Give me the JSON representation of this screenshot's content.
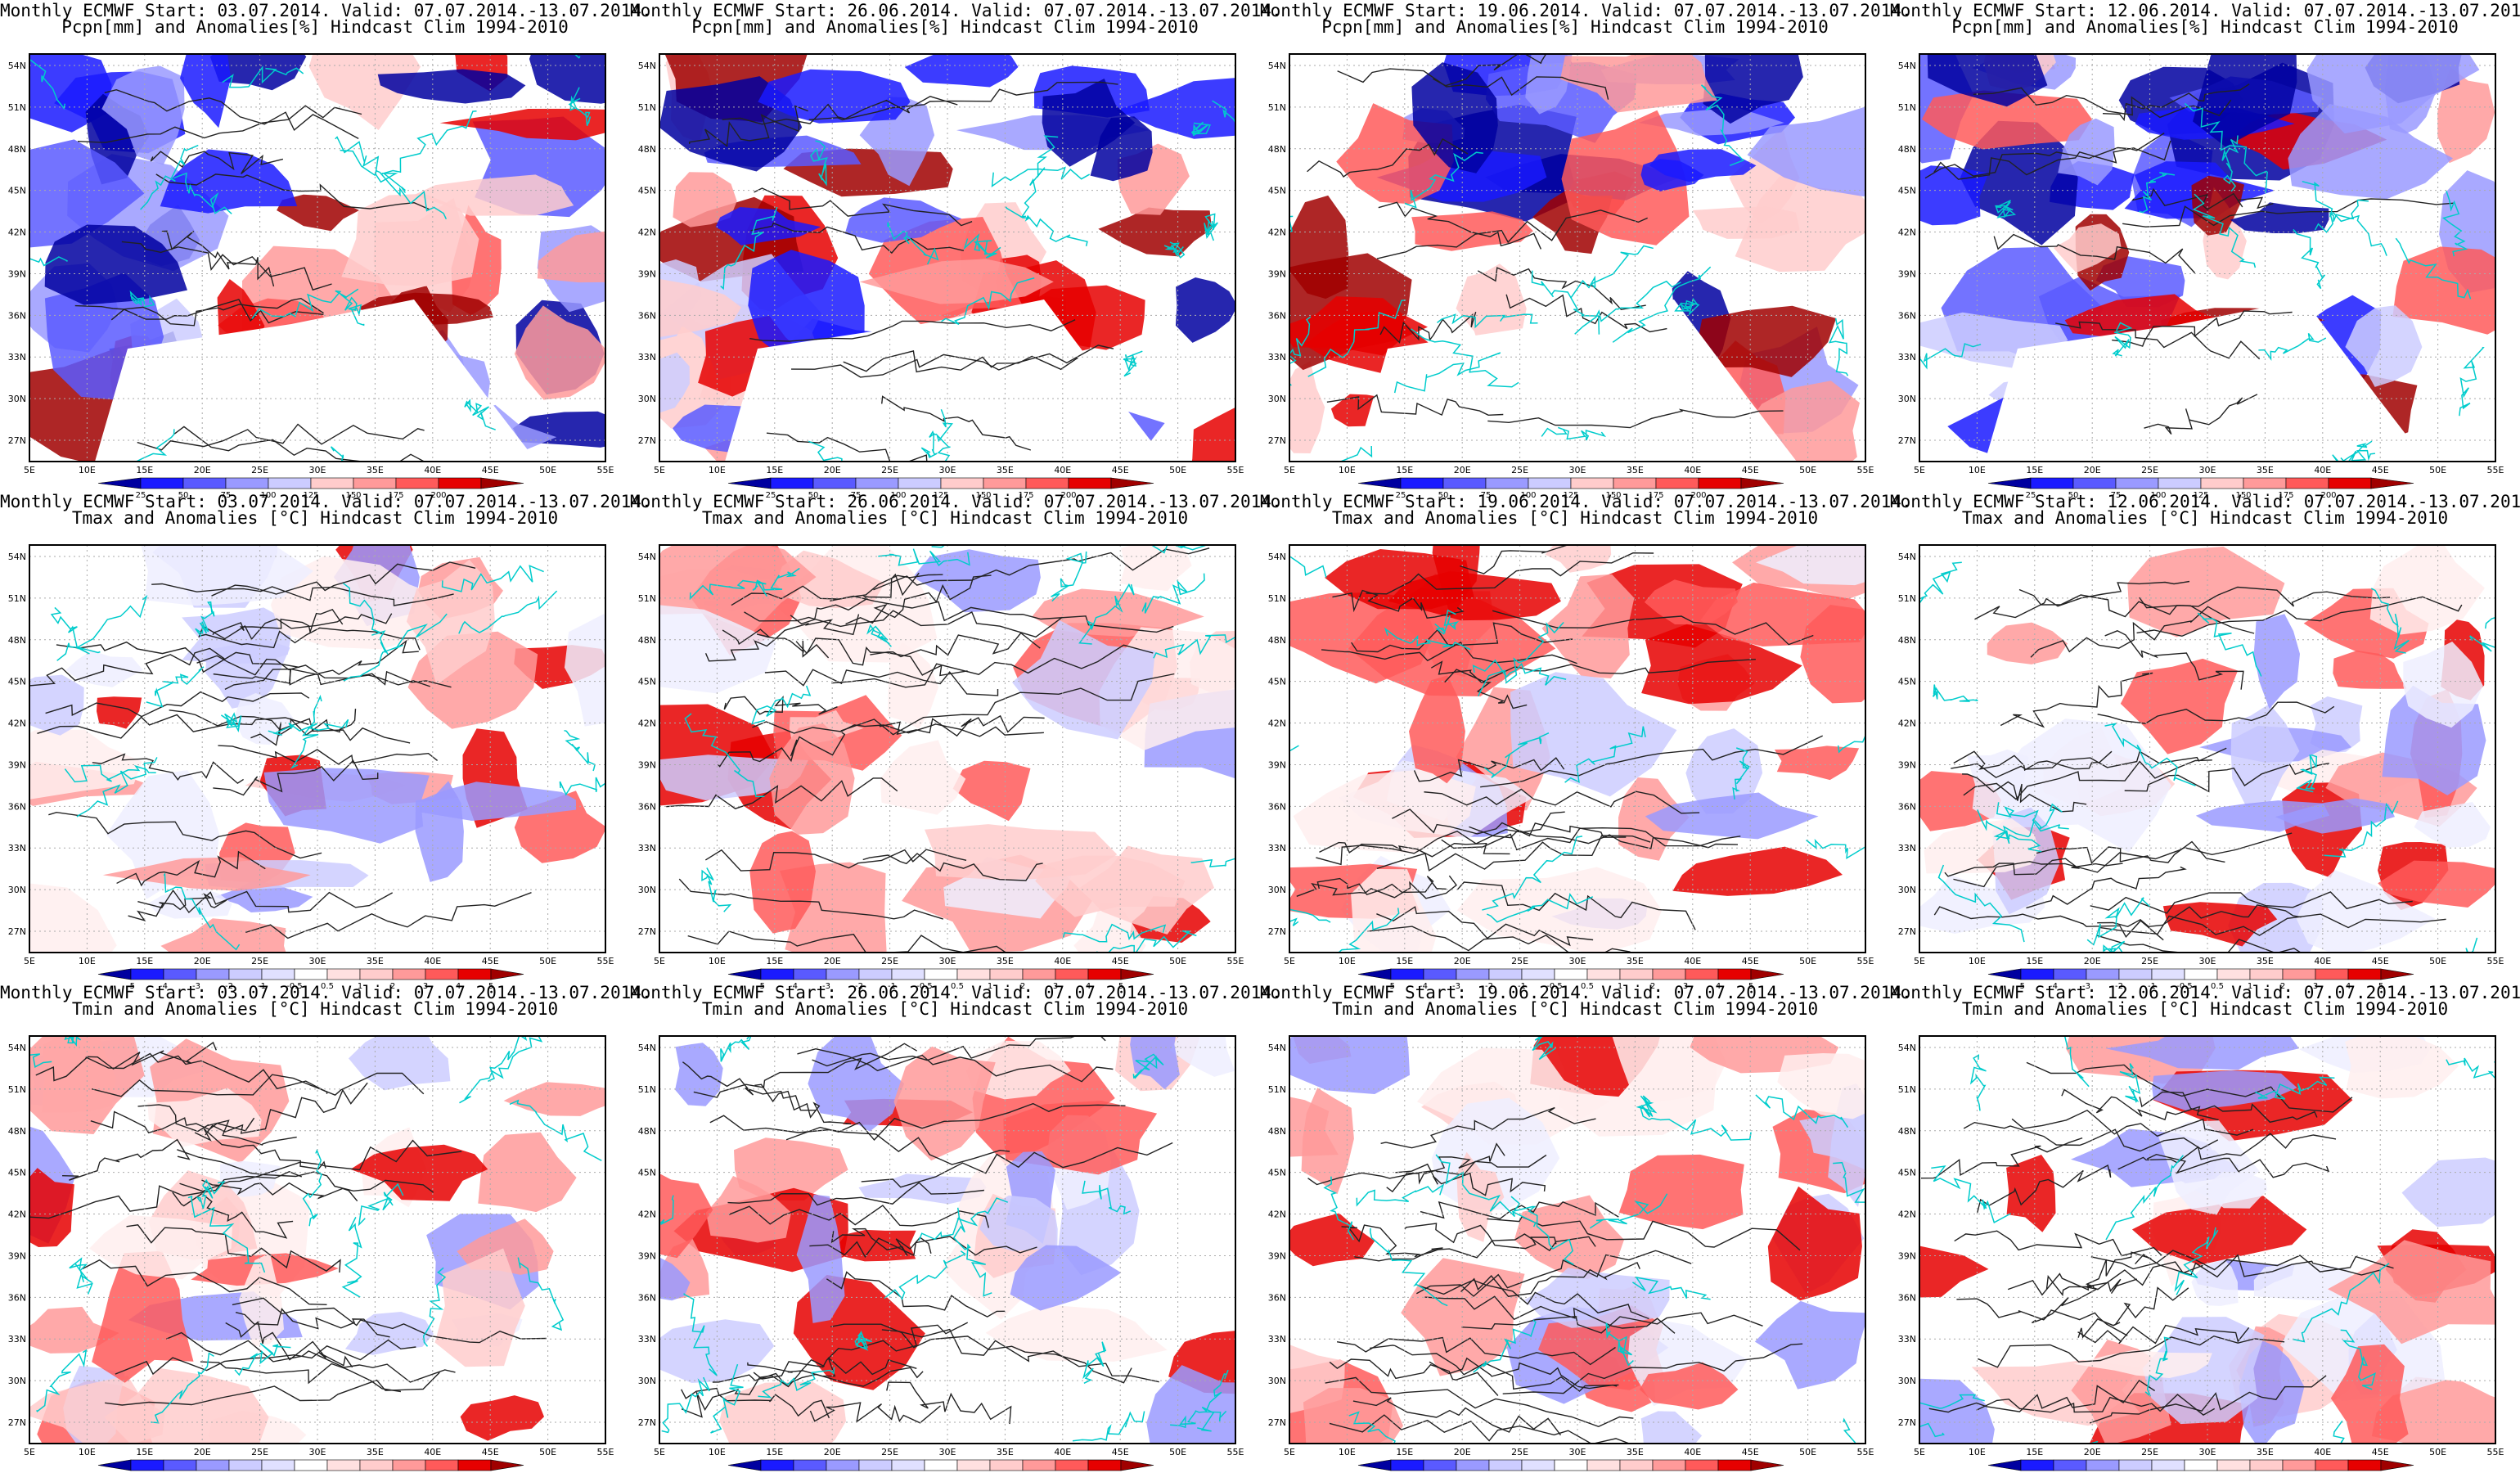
{
  "colors": {
    "neg3": "#1a1aff",
    "neg2": "#5a5aff",
    "neg1": "#9a9aff",
    "neg0": "#ccccff",
    "pos0": "#ffcccc",
    "pos1": "#ff9a9a",
    "pos2": "#ff5a5a",
    "pos3": "#e60000",
    "deepblue": "#0000a0",
    "deepred": "#a00000",
    "border": "#00cccc",
    "contour": "#222222"
  },
  "axes": {
    "lat_labels": [
      "54N",
      "51N",
      "48N",
      "45N",
      "42N",
      "39N",
      "36N",
      "33N",
      "30N",
      "27N"
    ],
    "lon_labels": [
      "5E",
      "10E",
      "15E",
      "20E",
      "25E",
      "30E",
      "35E",
      "40E",
      "45E",
      "50E",
      "55E"
    ]
  },
  "colorbars": {
    "pcpn": [
      "25",
      "50",
      "75",
      "100",
      "125",
      "150",
      "175",
      "200"
    ],
    "temp": [
      "-5",
      "-4",
      "-3",
      "-2",
      "-1",
      "-0.5",
      "0.5",
      "1",
      "2",
      "3",
      "4",
      "5"
    ]
  },
  "panels": [
    {
      "id": "p11",
      "type": "pcpn",
      "line1": "Monthly ECMWF Start: 03.07.2014. Valid: 07.07.2014.-13.07.2014.",
      "line2": "Pcpn[mm] and Anomalies[%] Hindcast Clim 1994-2010"
    },
    {
      "id": "p12",
      "type": "pcpn",
      "line1": "Monthly ECMWF Start: 26.06.2014. Valid: 07.07.2014.-13.07.2014.",
      "line2": "Pcpn[mm] and Anomalies[%] Hindcast Clim 1994-2010"
    },
    {
      "id": "p13",
      "type": "pcpn",
      "line1": "Monthly ECMWF Start: 19.06.2014. Valid: 07.07.2014.-13.07.2014.",
      "line2": "Pcpn[mm] and Anomalies[%] Hindcast Clim 1994-2010"
    },
    {
      "id": "p14",
      "type": "pcpn",
      "line1": "Monthly ECMWF Start: 12.06.2014. Valid: 07.07.2014.-13.07.2014.",
      "line2": "Pcpn[mm] and Anomalies[%] Hindcast Clim 1994-2010"
    },
    {
      "id": "p21",
      "type": "temp",
      "line1": "Monthly ECMWF Start: 03.07.2014. Valid: 07.07.2014.-13.07.2014.",
      "line2": "Tmax and Anomalies [°C] Hindcast Clim 1994-2010"
    },
    {
      "id": "p22",
      "type": "temp",
      "line1": "Monthly ECMWF Start: 26.06.2014. Valid: 07.07.2014.-13.07.2014.",
      "line2": "Tmax and Anomalies [°C] Hindcast Clim 1994-2010"
    },
    {
      "id": "p23",
      "type": "temp",
      "line1": "Monthly ECMWF Start: 19.06.2014. Valid: 07.07.2014.-13.07.2014.",
      "line2": "Tmax and Anomalies [°C] Hindcast Clim 1994-2010"
    },
    {
      "id": "p24",
      "type": "temp",
      "line1": "Monthly ECMWF Start: 12.06.2014. Valid: 07.07.2014.-13.07.2014.",
      "line2": "Tmax and Anomalies [°C] Hindcast Clim 1994-2010"
    },
    {
      "id": "p31",
      "type": "temp",
      "line1": "Monthly ECMWF Start: 03.07.2014. Valid: 07.07.2014.-13.07.2014.",
      "line2": "Tmin and Anomalies [°C] Hindcast Clim 1994-2010"
    },
    {
      "id": "p32",
      "type": "temp",
      "line1": "Monthly ECMWF Start: 26.06.2014. Valid: 07.07.2014.-13.07.2014.",
      "line2": "Tmin and Anomalies [°C] Hindcast Clim 1994-2010"
    },
    {
      "id": "p33",
      "type": "temp",
      "line1": "Monthly ECMWF Start: 19.06.2014. Valid: 07.07.2014.-13.07.2014.",
      "line2": "Tmin and Anomalies [°C] Hindcast Clim 1994-2010"
    },
    {
      "id": "p34",
      "type": "temp",
      "line1": "Monthly ECMWF Start: 12.06.2014. Valid: 07.07.2014.-13.07.2014.",
      "line2": "Tmin and Anomalies [°C] Hindcast Clim 1994-2010"
    }
  ],
  "chart_data": {
    "type": "heatmap",
    "panel_count": 12,
    "lon_range": [
      5,
      55
    ],
    "lat_range": [
      25,
      55
    ],
    "pcpn_colorbar_levels": [
      25,
      50,
      75,
      100,
      125,
      150,
      175,
      200
    ],
    "temp_colorbar_levels": [
      -5,
      -4,
      -3,
      -2,
      -1,
      -0.5,
      0.5,
      1,
      2,
      3,
      4,
      5
    ]
  }
}
